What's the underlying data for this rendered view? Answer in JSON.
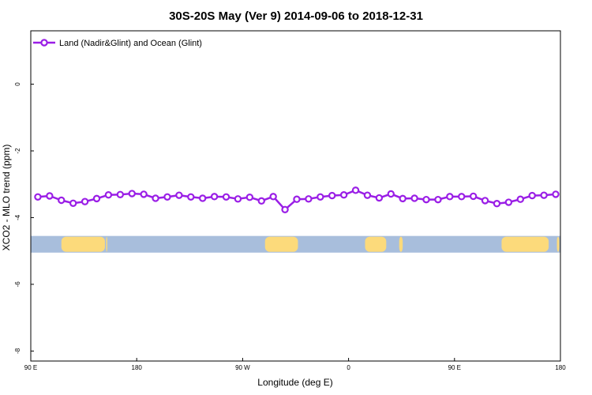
{
  "chart_data": {
    "type": "line",
    "title": "30S-20S May (Ver 9)   2014-09-06 to 2018-12-31",
    "xlabel": "Longitude (deg E)",
    "ylabel": "XCO2 - MLO trend (ppm)",
    "xlim": [
      90,
      540
    ],
    "ylim": [
      -8.3,
      1.6
    ],
    "x_ticks": [
      {
        "value": 90,
        "label": "90 E"
      },
      {
        "value": 180,
        "label": "180"
      },
      {
        "value": 270,
        "label": "90 W"
      },
      {
        "value": 360,
        "label": "0"
      },
      {
        "value": 450,
        "label": "90 E"
      },
      {
        "value": 540,
        "label": "180"
      }
    ],
    "y_ticks": [
      {
        "value": 0,
        "label": "0"
      },
      {
        "value": -2,
        "label": "-2"
      },
      {
        "value": -4,
        "label": "-4"
      },
      {
        "value": -6,
        "label": "-6"
      },
      {
        "value": -8,
        "label": "-8"
      }
    ],
    "legend": {
      "position": "top-left"
    },
    "grid": false,
    "series": [
      {
        "name": "Land (Nadir&Glint) and Ocean (Glint)",
        "color": "#9a1ee6",
        "marker": "open-circle",
        "x": [
          96,
          106,
          116,
          126,
          136,
          146,
          156,
          166,
          176,
          186,
          196,
          206,
          216,
          226,
          236,
          246,
          256,
          266,
          276,
          286,
          296,
          306,
          316,
          326,
          336,
          346,
          356,
          366,
          376,
          386,
          396,
          406,
          416,
          426,
          436,
          446,
          456,
          466,
          476,
          486,
          496,
          506,
          516,
          526,
          536
        ],
        "y": [
          -3.38,
          -3.35,
          -3.48,
          -3.57,
          -3.52,
          -3.43,
          -3.32,
          -3.31,
          -3.28,
          -3.3,
          -3.42,
          -3.38,
          -3.33,
          -3.38,
          -3.42,
          -3.37,
          -3.38,
          -3.44,
          -3.39,
          -3.5,
          -3.37,
          -3.76,
          -3.45,
          -3.44,
          -3.38,
          -3.34,
          -3.32,
          -3.18,
          -3.33,
          -3.41,
          -3.29,
          -3.43,
          -3.42,
          -3.46,
          -3.46,
          -3.37,
          -3.37,
          -3.36,
          -3.49,
          -3.58,
          -3.54,
          -3.45,
          -3.34,
          -3.33,
          -3.3
        ]
      }
    ],
    "land_ocean_strip": {
      "y_range": [
        -4.55,
        -5.05
      ],
      "ocean_color": "#a8bedc",
      "land_color": "#fcda7b",
      "land_x_ranges": [
        [
          116,
          153
        ],
        [
          154,
          155
        ],
        [
          289,
          317
        ],
        [
          374,
          392
        ],
        [
          403,
          406
        ],
        [
          490,
          530
        ],
        [
          537,
          539
        ]
      ]
    }
  }
}
